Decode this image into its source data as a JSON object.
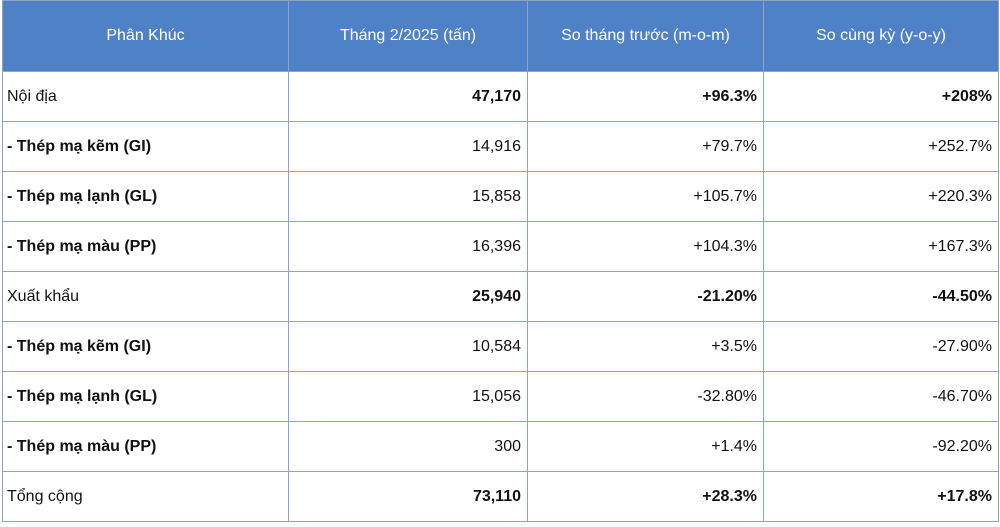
{
  "table": {
    "headers": [
      "Phân Khúc",
      "Tháng 2/2025 (tấn)",
      "So tháng trước (m-o-m)",
      "So cùng kỳ (y-o-y)"
    ],
    "rows": [
      {
        "label": "Nội địa",
        "volume": "47,170",
        "mom": "+96.3%",
        "yoy": "+208%"
      },
      {
        "label": "- Thép mạ kẽm (GI)",
        "volume": "14,916",
        "mom": "+79.7%",
        "yoy": "+252.7%"
      },
      {
        "label": "- Thép mạ lạnh (GL)",
        "volume": "15,858",
        "mom": "+105.7%",
        "yoy": "+220.3%"
      },
      {
        "label": "- Thép mạ màu (PP)",
        "volume": "16,396",
        "mom": "+104.3%",
        "yoy": "+167.3%"
      },
      {
        "label": "Xuất khẩu",
        "volume": "25,940",
        "mom": "-21.20%",
        "yoy": "-44.50%"
      },
      {
        "label": "- Thép mạ kẽm (GI)",
        "volume": "10,584",
        "mom": "+3.5%",
        "yoy": "-27.90%"
      },
      {
        "label": "- Thép mạ lạnh (GL)",
        "volume": "15,056",
        "mom": "-32.80%",
        "yoy": "-46.70%"
      },
      {
        "label": "- Thép mạ màu (PP)",
        "volume": "300",
        "mom": "+1.4%",
        "yoy": "-92.20%"
      },
      {
        "label": "Tổng cộng",
        "volume": "73,110",
        "mom": "+28.3%",
        "yoy": "+17.8%"
      }
    ]
  }
}
